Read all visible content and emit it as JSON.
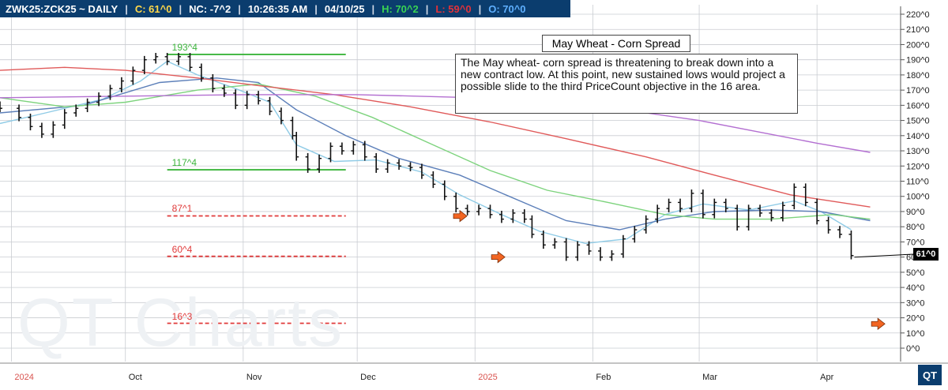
{
  "header": {
    "symbol": "ZWK25:ZCK25 ~ DAILY",
    "sep": "|",
    "close": "C: 61^0",
    "net_change": "NC: -7^2",
    "time": "10:26:35 AM",
    "date": "04/10/25",
    "high": "H: 70^2",
    "low": "L: 59^0",
    "open": "O: 70^0"
  },
  "colors": {
    "header_bg": "#0b3d6e",
    "close_text": "#ffd84a",
    "nc_text": "#ff4f4f",
    "high_text": "#39d353",
    "low_text": "#e0323a",
    "open_text": "#5fb0ff",
    "target_hit": "#3cb43c",
    "target_open": "#e03a3a",
    "arrow": "#f26522",
    "ma_fast": "#8fcbe6",
    "ma_mid": "#5c7fb9",
    "ma_green": "#7dd37d",
    "ma_red": "#e05a5a",
    "ma_purple": "#b36fd1"
  },
  "title_box": "May Wheat - Corn Spread",
  "note": "The May wheat- corn spread is threatening to break down into a new contract low.  At this point, new sustained lows would project a possible slide to the third PriceCount objective in the 16 area.",
  "watermark": "QT Charts",
  "logo": "QT",
  "last_price_tag": "61^0",
  "chart_data": {
    "type": "ohlc",
    "title": "May Wheat - Corn Spread",
    "xlabel": "",
    "ylabel": "",
    "y_ticks": [
      "0^0",
      "10^0",
      "20^0",
      "30^0",
      "40^0",
      "50^0",
      "60^0",
      "70^0",
      "80^0",
      "90^0",
      "100^0",
      "110^0",
      "120^0",
      "130^0",
      "140^0",
      "150^0",
      "160^0",
      "170^0",
      "180^0",
      "190^0",
      "200^0",
      "210^0",
      "220^0"
    ],
    "ylim": [
      0,
      220
    ],
    "x_labels": [
      {
        "label": "2024",
        "date": "2024-09-01",
        "year": true
      },
      {
        "label": "Oct",
        "date": "2024-10-01",
        "year": false
      },
      {
        "label": "Nov",
        "date": "2024-11-01",
        "year": false
      },
      {
        "label": "Dec",
        "date": "2024-12-01",
        "year": false
      },
      {
        "label": "2025",
        "date": "2025-01-01",
        "year": true
      },
      {
        "label": "Feb",
        "date": "2025-02-01",
        "year": false
      },
      {
        "label": "Mar",
        "date": "2025-03-01",
        "year": false
      },
      {
        "label": "Apr",
        "date": "2025-04-01",
        "year": false
      }
    ],
    "x_range": [
      "2024-08-29",
      "2025-04-23"
    ],
    "grid": true,
    "price_targets": [
      {
        "label": "193^4",
        "value": 193.5,
        "status": "hit",
        "start": "2024-10-12",
        "end": "2024-11-28"
      },
      {
        "label": "117^4",
        "value": 117.5,
        "status": "hit",
        "start": "2024-10-12",
        "end": "2024-11-28"
      },
      {
        "label": "87^1",
        "value": 87.125,
        "status": "open",
        "start": "2024-10-12",
        "end": "2024-11-28"
      },
      {
        "label": "60^4",
        "value": 60.5,
        "status": "open",
        "start": "2024-10-12",
        "end": "2024-11-28"
      },
      {
        "label": "16^3",
        "value": 16.375,
        "status": "open",
        "start": "2024-10-12",
        "end": "2024-11-28"
      }
    ],
    "arrows": [
      {
        "date": "2024-12-28",
        "value": 87
      },
      {
        "date": "2025-01-07",
        "value": 60
      },
      {
        "date": "2025-04-17",
        "value": 16
      }
    ],
    "closes": [
      [
        "2024-08-29",
        158
      ],
      [
        "2024-09-03",
        152
      ],
      [
        "2024-09-06",
        146
      ],
      [
        "2024-09-09",
        141
      ],
      [
        "2024-09-12",
        147
      ],
      [
        "2024-09-15",
        155
      ],
      [
        "2024-09-18",
        158
      ],
      [
        "2024-09-21",
        162
      ],
      [
        "2024-09-24",
        166
      ],
      [
        "2024-09-27",
        171
      ],
      [
        "2024-09-30",
        176
      ],
      [
        "2024-10-03",
        183
      ],
      [
        "2024-10-06",
        190
      ],
      [
        "2024-10-09",
        192
      ],
      [
        "2024-10-12",
        189
      ],
      [
        "2024-10-15",
        192
      ],
      [
        "2024-10-18",
        185
      ],
      [
        "2024-10-21",
        178
      ],
      [
        "2024-10-24",
        171
      ],
      [
        "2024-10-27",
        168
      ],
      [
        "2024-10-30",
        160
      ],
      [
        "2024-11-02",
        167
      ],
      [
        "2024-11-05",
        163
      ],
      [
        "2024-11-08",
        156
      ],
      [
        "2024-11-11",
        150
      ],
      [
        "2024-11-14",
        140
      ],
      [
        "2024-11-15",
        126
      ],
      [
        "2024-11-18",
        118
      ],
      [
        "2024-11-21",
        125
      ],
      [
        "2024-11-24",
        133
      ],
      [
        "2024-11-27",
        130
      ],
      [
        "2024-11-30",
        134
      ],
      [
        "2024-12-03",
        126
      ],
      [
        "2024-12-06",
        118
      ],
      [
        "2024-12-09",
        122
      ],
      [
        "2024-12-12",
        120
      ],
      [
        "2024-12-15",
        119
      ],
      [
        "2024-12-18",
        114
      ],
      [
        "2024-12-21",
        108
      ],
      [
        "2024-12-24",
        100
      ],
      [
        "2024-12-27",
        92
      ],
      [
        "2024-12-30",
        90
      ],
      [
        "2025-01-02",
        92
      ],
      [
        "2025-01-05",
        88
      ],
      [
        "2025-01-08",
        85
      ],
      [
        "2025-01-11",
        89
      ],
      [
        "2025-01-14",
        85
      ],
      [
        "2025-01-16",
        75
      ],
      [
        "2025-01-19",
        68
      ],
      [
        "2025-01-22",
        70
      ],
      [
        "2025-01-25",
        60
      ],
      [
        "2025-01-28",
        68
      ],
      [
        "2025-01-31",
        64
      ],
      [
        "2025-02-03",
        60
      ],
      [
        "2025-02-06",
        62
      ],
      [
        "2025-02-09",
        72
      ],
      [
        "2025-02-12",
        78
      ],
      [
        "2025-02-15",
        85
      ],
      [
        "2025-02-18",
        92
      ],
      [
        "2025-02-21",
        96
      ],
      [
        "2025-02-24",
        92
      ],
      [
        "2025-02-27",
        102
      ],
      [
        "2025-03-02",
        88
      ],
      [
        "2025-03-05",
        96
      ],
      [
        "2025-03-08",
        92
      ],
      [
        "2025-03-11",
        80
      ],
      [
        "2025-03-14",
        92
      ],
      [
        "2025-03-17",
        89
      ],
      [
        "2025-03-20",
        86
      ],
      [
        "2025-03-23",
        94
      ],
      [
        "2025-03-26",
        106
      ],
      [
        "2025-03-29",
        96
      ],
      [
        "2025-04-01",
        84
      ],
      [
        "2025-04-04",
        78
      ],
      [
        "2025-04-07",
        75
      ],
      [
        "2025-04-10",
        61
      ]
    ],
    "moving_averages": [
      {
        "color_key": "ma_fast",
        "points": [
          [
            "2024-08-29",
            148
          ],
          [
            "2024-09-10",
            155
          ],
          [
            "2024-09-25",
            164
          ],
          [
            "2024-10-05",
            176
          ],
          [
            "2024-10-12",
            189
          ],
          [
            "2024-10-20",
            180
          ],
          [
            "2024-10-30",
            171
          ],
          [
            "2024-11-08",
            162
          ],
          [
            "2024-11-15",
            134
          ],
          [
            "2024-11-25",
            123
          ],
          [
            "2024-12-06",
            124
          ],
          [
            "2024-12-18",
            116
          ],
          [
            "2024-12-28",
            101
          ],
          [
            "2025-01-08",
            88
          ],
          [
            "2025-01-18",
            77
          ],
          [
            "2025-01-30",
            69
          ],
          [
            "2025-02-10",
            72
          ],
          [
            "2025-02-20",
            88
          ],
          [
            "2025-03-02",
            95
          ],
          [
            "2025-03-14",
            91
          ],
          [
            "2025-03-26",
            97
          ],
          [
            "2025-04-02",
            90
          ],
          [
            "2025-04-10",
            78
          ]
        ]
      },
      {
        "color_key": "ma_mid",
        "points": [
          [
            "2024-08-29",
            155
          ],
          [
            "2024-09-20",
            160
          ],
          [
            "2024-10-10",
            175
          ],
          [
            "2024-10-25",
            178
          ],
          [
            "2024-11-05",
            175
          ],
          [
            "2024-11-15",
            157
          ],
          [
            "2024-11-28",
            140
          ],
          [
            "2024-12-12",
            125
          ],
          [
            "2024-12-28",
            114
          ],
          [
            "2025-01-10",
            100
          ],
          [
            "2025-01-25",
            84
          ],
          [
            "2025-02-08",
            78
          ],
          [
            "2025-02-20",
            85
          ],
          [
            "2025-03-05",
            90
          ],
          [
            "2025-03-20",
            91
          ],
          [
            "2025-04-02",
            90
          ],
          [
            "2025-04-15",
            84
          ]
        ]
      },
      {
        "color_key": "ma_green",
        "points": [
          [
            "2024-08-29",
            165
          ],
          [
            "2024-09-15",
            159
          ],
          [
            "2024-10-01",
            162
          ],
          [
            "2024-10-20",
            170
          ],
          [
            "2024-11-05",
            174
          ],
          [
            "2024-11-20",
            166
          ],
          [
            "2024-12-05",
            152
          ],
          [
            "2024-12-20",
            135
          ],
          [
            "2025-01-05",
            117
          ],
          [
            "2025-01-20",
            104
          ],
          [
            "2025-02-05",
            96
          ],
          [
            "2025-02-20",
            88
          ],
          [
            "2025-03-05",
            85
          ],
          [
            "2025-03-20",
            85
          ],
          [
            "2025-04-05",
            88
          ],
          [
            "2025-04-15",
            85
          ]
        ]
      },
      {
        "color_key": "ma_red",
        "points": [
          [
            "2024-08-29",
            183
          ],
          [
            "2024-09-15",
            185
          ],
          [
            "2024-10-01",
            183
          ],
          [
            "2024-10-20",
            178
          ],
          [
            "2024-11-05",
            173
          ],
          [
            "2024-11-25",
            167
          ],
          [
            "2024-12-15",
            159
          ],
          [
            "2025-01-05",
            149
          ],
          [
            "2025-01-25",
            138
          ],
          [
            "2025-02-15",
            126
          ],
          [
            "2025-03-05",
            114
          ],
          [
            "2025-03-25",
            101
          ],
          [
            "2025-04-15",
            93
          ]
        ]
      },
      {
        "color_key": "ma_purple",
        "points": [
          [
            "2024-08-29",
            165
          ],
          [
            "2024-10-01",
            166
          ],
          [
            "2024-11-01",
            167
          ],
          [
            "2024-12-01",
            167
          ],
          [
            "2025-01-01",
            165
          ],
          [
            "2025-02-01",
            160
          ],
          [
            "2025-03-01",
            150
          ],
          [
            "2025-04-01",
            135
          ],
          [
            "2025-04-15",
            129
          ]
        ]
      }
    ]
  }
}
